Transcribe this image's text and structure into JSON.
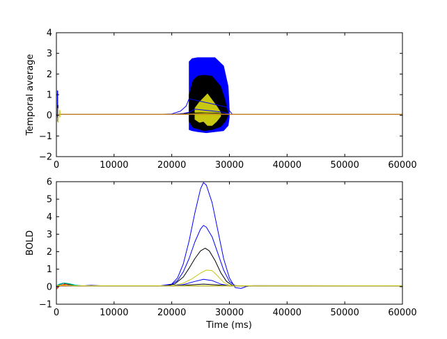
{
  "chart_data": [
    {
      "type": "line",
      "title": "",
      "xlabel": "",
      "ylabel": "Temporal average",
      "xlim": [
        0,
        60000
      ],
      "ylim": [
        -2,
        4
      ],
      "xticks": [
        "0",
        "10000",
        "20000",
        "30000",
        "40000",
        "50000",
        "60000"
      ],
      "yticks": [
        "−2",
        "−1",
        "0",
        "1",
        "2",
        "3",
        "4"
      ],
      "grid": false,
      "legend": "none",
      "envelopes": [
        {
          "color": "#0000ff",
          "x": [
            23000,
            23500,
            24500,
            26000,
            27500,
            29000,
            29800,
            30000
          ],
          "upper": [
            2.6,
            2.75,
            2.8,
            2.8,
            2.8,
            2.4,
            1.4,
            0.3
          ],
          "lower": [
            -0.7,
            -0.75,
            -0.8,
            -0.85,
            -0.8,
            -0.75,
            -0.5,
            -0.1
          ]
        },
        {
          "color": "#000000",
          "x": [
            23000,
            23700,
            24500,
            25500,
            27000,
            28500,
            29300,
            29700
          ],
          "upper": [
            1.0,
            1.7,
            1.9,
            1.95,
            1.9,
            1.4,
            0.7,
            0.15
          ],
          "lower": [
            -0.3,
            -0.6,
            -0.65,
            -0.75,
            -0.7,
            -0.55,
            -0.3,
            -0.05
          ]
        },
        {
          "color": "#c8c813",
          "x": [
            24000,
            24800,
            25500,
            26200,
            27000,
            27800,
            28500
          ],
          "upper": [
            0.35,
            0.65,
            0.85,
            1.05,
            0.75,
            0.45,
            0.15
          ],
          "lower": [
            -0.2,
            -0.35,
            -0.3,
            -0.5,
            -0.5,
            -0.3,
            -0.05
          ]
        }
      ],
      "series": [
        {
          "color": "#0000ff",
          "x": [
            0,
            18000,
            20000,
            21500,
            22500,
            23000,
            29500,
            30500,
            31000,
            60000
          ],
          "y": [
            0.05,
            0.05,
            0.07,
            0.2,
            0.45,
            0.8,
            0.4,
            0.05,
            0.05,
            0.05
          ]
        },
        {
          "color": "#0000ff",
          "x": [
            0,
            20000,
            22000,
            23000,
            24000,
            29000,
            30000,
            60000
          ],
          "y": [
            0.05,
            0.05,
            0.09,
            0.15,
            0.3,
            0.15,
            0.06,
            0.05
          ]
        },
        {
          "color": "#000000",
          "x": [
            0,
            21000,
            23000,
            25000,
            28000,
            29500,
            60000
          ],
          "y": [
            0.05,
            0.05,
            0.1,
            0.12,
            0.1,
            0.05,
            0.05
          ]
        },
        {
          "color": "#c8c813",
          "x": [
            0,
            22000,
            24000,
            26000,
            28000,
            29500,
            60000
          ],
          "y": [
            0.05,
            0.05,
            0.07,
            0.09,
            0.07,
            0.05,
            0.05
          ]
        },
        {
          "color": "#ff0000",
          "x": [
            0,
            60000
          ],
          "y": [
            0.05,
            0.05
          ]
        },
        {
          "color": "#008000",
          "x": [
            0,
            60000
          ],
          "y": [
            0.05,
            0.05
          ]
        },
        {
          "color": "#00bfbf",
          "x": [
            0,
            60000
          ],
          "y": [
            0.05,
            0.05
          ]
        },
        {
          "color": "#ff7f0e",
          "x": [
            0,
            60000
          ],
          "y": [
            0.05,
            0.05
          ]
        }
      ],
      "transients": [
        {
          "color": "#0000ff",
          "x": 200,
          "low": -0.1,
          "high": 1.2
        },
        {
          "color": "#000000",
          "x": 250,
          "low": -0.3,
          "high": 0.5
        },
        {
          "color": "#c8c813",
          "x": 300,
          "low": -0.35,
          "high": 0.35
        },
        {
          "color": "#c8c813",
          "x": 600,
          "low": -0.1,
          "high": 0.25
        }
      ]
    },
    {
      "type": "line",
      "title": "",
      "xlabel": "Time (ms)",
      "ylabel": "BOLD",
      "xlim": [
        0,
        60000
      ],
      "ylim": [
        -1,
        6
      ],
      "xticks": [
        "0",
        "10000",
        "20000",
        "30000",
        "40000",
        "50000",
        "60000"
      ],
      "yticks": [
        "−1",
        "0",
        "1",
        "2",
        "3",
        "4",
        "5",
        "6"
      ],
      "grid": false,
      "legend": "none",
      "series": [
        {
          "color": "#0000ff",
          "x": [
            0,
            500,
            1200,
            2000,
            3000,
            4000,
            5000,
            6000,
            8000,
            18000,
            20000,
            21000,
            22000,
            23000,
            24000,
            25000,
            25500,
            26000,
            27000,
            28000,
            29000,
            30000,
            31000,
            32000,
            33000,
            34000,
            60000
          ],
          "y": [
            -0.05,
            0.1,
            0.2,
            0.12,
            0.06,
            0.05,
            0.06,
            0.08,
            0.05,
            0.05,
            0.15,
            0.5,
            1.3,
            2.6,
            4.2,
            5.6,
            5.95,
            5.8,
            4.8,
            3.2,
            1.6,
            0.5,
            -0.05,
            -0.1,
            0.02,
            0.06,
            0.05
          ]
        },
        {
          "color": "#0000ff",
          "x": [
            0,
            18000,
            20000,
            21000,
            22000,
            23000,
            24000,
            25000,
            25500,
            26000,
            27000,
            28000,
            29000,
            30000,
            31000,
            60000
          ],
          "y": [
            0.05,
            0.05,
            0.12,
            0.35,
            0.85,
            1.6,
            2.55,
            3.3,
            3.5,
            3.4,
            2.85,
            1.9,
            0.95,
            0.3,
            0.05,
            0.05
          ]
        },
        {
          "color": "#000000",
          "x": [
            0,
            19000,
            20500,
            22000,
            23000,
            24000,
            25000,
            25800,
            26500,
            27500,
            28500,
            29500,
            30500,
            31500,
            60000
          ],
          "y": [
            0.05,
            0.05,
            0.15,
            0.55,
            1.05,
            1.6,
            2.05,
            2.2,
            2.05,
            1.5,
            0.8,
            0.3,
            0.08,
            0.05,
            0.05
          ]
        },
        {
          "color": "#c8c813",
          "x": [
            0,
            20000,
            22000,
            23500,
            25000,
            26000,
            27000,
            28000,
            29000,
            30000,
            31000,
            60000
          ],
          "y": [
            0.05,
            0.05,
            0.2,
            0.45,
            0.78,
            0.95,
            0.92,
            0.6,
            0.25,
            0.08,
            0.05,
            0.05
          ]
        },
        {
          "color": "#0000ff",
          "x": [
            0,
            20000,
            22000,
            24000,
            25500,
            27000,
            28500,
            30000,
            60000
          ],
          "y": [
            0.05,
            0.05,
            0.12,
            0.3,
            0.42,
            0.35,
            0.15,
            0.05,
            0.05
          ]
        },
        {
          "color": "#000000",
          "x": [
            0,
            21000,
            23000,
            25500,
            28000,
            30000,
            60000
          ],
          "y": [
            0.05,
            0.05,
            0.1,
            0.15,
            0.1,
            0.05,
            0.05
          ]
        },
        {
          "color": "#ff0000",
          "x": [
            0,
            400,
            1000,
            1800,
            2800,
            4000,
            6000,
            60000
          ],
          "y": [
            -0.15,
            0.0,
            0.12,
            0.15,
            0.1,
            0.05,
            0.05,
            0.05
          ]
        },
        {
          "color": "#008000",
          "x": [
            0,
            500,
            1200,
            2000,
            3000,
            4500,
            60000
          ],
          "y": [
            0.0,
            0.12,
            0.2,
            0.16,
            0.08,
            0.05,
            0.05
          ]
        },
        {
          "color": "#00bfbf",
          "x": [
            0,
            500,
            1300,
            2200,
            3200,
            4500,
            60000
          ],
          "y": [
            0.05,
            0.15,
            0.22,
            0.18,
            0.1,
            0.05,
            0.05
          ]
        },
        {
          "color": "#ff7f0e",
          "x": [
            0,
            60000
          ],
          "y": [
            0.05,
            0.05
          ]
        },
        {
          "color": "#c8c813",
          "x": [
            0,
            1000,
            2000,
            3000,
            60000
          ],
          "y": [
            0.05,
            0.1,
            0.08,
            0.05,
            0.05
          ]
        }
      ]
    }
  ]
}
